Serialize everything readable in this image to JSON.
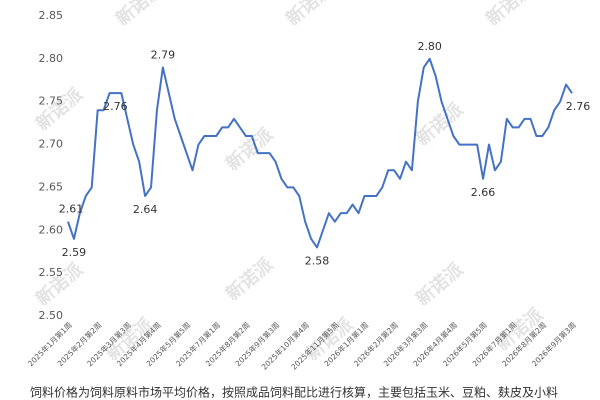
{
  "chart_data": {
    "type": "line",
    "watermark": "新诺派",
    "caption": "饲料价格为饲料原料市场平均价格，按照成品饲料配比进行核算，主要包括玉米、豆粕、麸皮及小料",
    "categories": [
      "2025年1月第1周",
      null,
      null,
      null,
      null,
      "2025年2月第2周",
      null,
      null,
      null,
      null,
      "2025年3月第3周",
      null,
      null,
      null,
      null,
      "2025年4月第4周",
      null,
      null,
      null,
      null,
      "2025年5月第5周",
      null,
      null,
      null,
      null,
      "2025年7月第1周",
      null,
      null,
      null,
      null,
      "2025年8月第2周",
      null,
      null,
      null,
      null,
      "2025年9月第3周",
      null,
      null,
      null,
      null,
      "2025年10月第4周",
      null,
      null,
      null,
      null,
      "2025年11月第5周",
      null,
      null,
      null,
      null,
      "2026年1月第1周",
      null,
      null,
      null,
      null,
      "2026年2月第2周",
      null,
      null,
      null,
      null,
      "2026年3月第3周",
      null,
      null,
      null,
      null,
      "2026年4月第4周",
      null,
      null,
      null,
      null,
      "2026年5月第5周",
      null,
      null,
      null,
      null,
      "2026年7月第1周",
      null,
      null,
      null,
      null,
      "2026年8月第2周",
      null,
      null,
      null,
      null,
      "2026年9月第3周"
    ],
    "series": [
      {
        "color": "#4472c4",
        "values": [
          2.61,
          2.59,
          2.62,
          2.64,
          2.65,
          2.74,
          2.74,
          2.76,
          2.76,
          2.76,
          2.73,
          2.7,
          2.68,
          2.64,
          2.65,
          2.74,
          2.79,
          2.76,
          2.73,
          2.71,
          2.69,
          2.67,
          2.7,
          2.71,
          2.71,
          2.71,
          2.72,
          2.72,
          2.73,
          2.72,
          2.71,
          2.71,
          2.69,
          2.69,
          2.69,
          2.68,
          2.66,
          2.65,
          2.65,
          2.64,
          2.61,
          2.59,
          2.58,
          2.6,
          2.62,
          2.61,
          2.62,
          2.62,
          2.63,
          2.62,
          2.64,
          2.64,
          2.64,
          2.65,
          2.67,
          2.67,
          2.66,
          2.68,
          2.67,
          2.75,
          2.79,
          2.8,
          2.78,
          2.75,
          2.73,
          2.71,
          2.7,
          2.7,
          2.7,
          2.7,
          2.66,
          2.7,
          2.67,
          2.68,
          2.73,
          2.72,
          2.72,
          2.73,
          2.73,
          2.71,
          2.71,
          2.72,
          2.74,
          2.75,
          2.77,
          2.76
        ],
        "value_labels": [
          "2.61",
          "2.59",
          null,
          null,
          null,
          null,
          null,
          null,
          "2.76",
          null,
          null,
          null,
          null,
          "2.64",
          null,
          null,
          "2.79",
          null,
          null,
          null,
          null,
          null,
          null,
          null,
          null,
          null,
          null,
          null,
          null,
          null,
          null,
          null,
          null,
          null,
          null,
          null,
          null,
          null,
          null,
          null,
          null,
          null,
          "2.58",
          null,
          null,
          null,
          null,
          null,
          null,
          null,
          null,
          null,
          null,
          null,
          null,
          null,
          null,
          null,
          null,
          null,
          null,
          "2.80",
          null,
          null,
          null,
          null,
          null,
          null,
          null,
          null,
          "2.66",
          null,
          null,
          null,
          null,
          null,
          null,
          null,
          null,
          null,
          null,
          null,
          null,
          null,
          null,
          "2.76"
        ]
      }
    ],
    "ylim": [
      2.5,
      2.85
    ],
    "yticks": [
      {
        "value": 2.5,
        "label": "2.50"
      },
      2.55,
      {
        "value": 2.6,
        "label": "2.60"
      },
      2.65,
      {
        "value": 2.7,
        "label": "2.70"
      },
      2.75,
      {
        "value": 2.8,
        "label": "2.80"
      },
      2.85
    ],
    "grid": false
  }
}
